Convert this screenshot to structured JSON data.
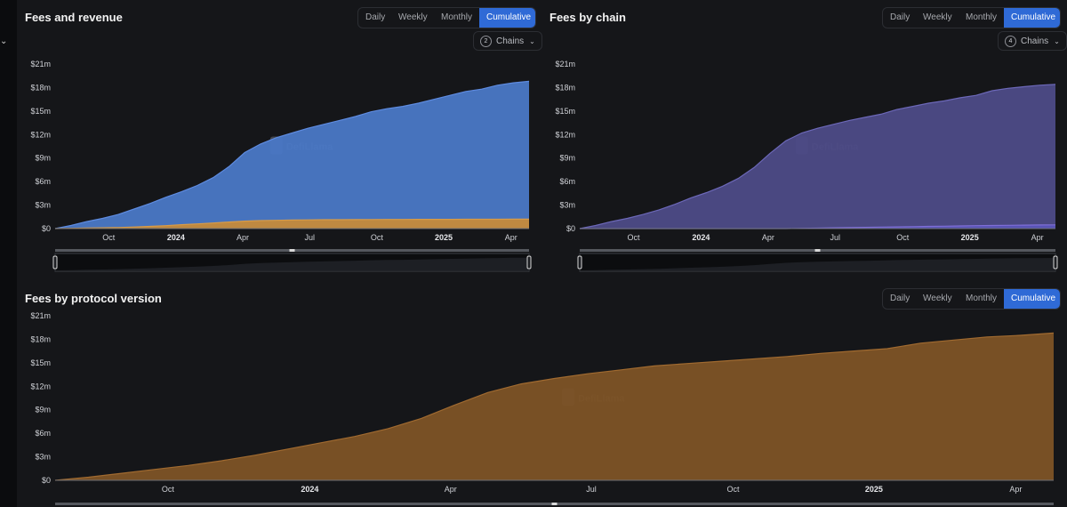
{
  "sidebar": {
    "chevron_icon": "chevron-down-icon"
  },
  "toggle_labels": [
    "Daily",
    "Weekly",
    "Monthly",
    "Cumulative"
  ],
  "active_toggle": "Cumulative",
  "watermark": "DefiLlama",
  "panels": {
    "fees_revenue": {
      "title": "Fees and revenue",
      "chains_count": "2",
      "chains_label": "Chains"
    },
    "fees_chain": {
      "title": "Fees by chain",
      "chains_count": "4",
      "chains_label": "Chains"
    },
    "fees_protocol": {
      "title": "Fees by protocol version"
    }
  },
  "colors": {
    "blue_area": "#4a78c6",
    "orange_area": "#c68a3a",
    "purple_area": "#4d4b87",
    "purple_line": "#7f6fd6",
    "protocol_area": "#7d5326",
    "protocol_line": "#a06a30",
    "active_button": "#2f6ad6"
  },
  "chart_data": [
    {
      "id": "fees_revenue",
      "type": "area",
      "title": "Fees and revenue",
      "x_ticks": [
        "Oct",
        "2024",
        "Apr",
        "Jul",
        "Oct",
        "2025",
        "Apr"
      ],
      "y_ticks": [
        "$0",
        "$3m",
        "$6m",
        "$9m",
        "$12m",
        "$15m",
        "$18m",
        "$21m"
      ],
      "ylim": [
        0,
        21
      ],
      "series": [
        {
          "values": [
            0,
            0.4,
            0.9,
            1.3,
            1.8,
            2.5,
            3.2,
            4.0,
            4.7,
            5.5,
            6.5,
            7.9,
            9.7,
            10.8,
            11.6,
            12.2,
            12.8,
            13.3,
            13.8,
            14.3,
            14.9,
            15.3,
            15.6,
            16.0,
            16.5,
            17.0,
            17.5,
            17.8,
            18.3,
            18.6,
            18.8
          ]
        },
        {
          "values": [
            0,
            0.03,
            0.07,
            0.1,
            0.14,
            0.2,
            0.28,
            0.38,
            0.5,
            0.6,
            0.72,
            0.84,
            0.95,
            1.02,
            1.06,
            1.09,
            1.11,
            1.13,
            1.14,
            1.15,
            1.16,
            1.17,
            1.17,
            1.18,
            1.18,
            1.18,
            1.19,
            1.19,
            1.19,
            1.2,
            1.2
          ]
        }
      ]
    },
    {
      "id": "fees_chain",
      "type": "area",
      "title": "Fees by chain",
      "x_ticks": [
        "Oct",
        "2024",
        "Apr",
        "Jul",
        "Oct",
        "2025",
        "Apr"
      ],
      "y_ticks": [
        "$0",
        "$3m",
        "$6m",
        "$9m",
        "$12m",
        "$15m",
        "$18m",
        "$21m"
      ],
      "ylim": [
        0,
        21
      ],
      "series": [
        {
          "values": [
            0,
            0.4,
            0.9,
            1.3,
            1.8,
            2.4,
            3.1,
            3.9,
            4.6,
            5.4,
            6.4,
            7.8,
            9.6,
            11.2,
            12.2,
            12.8,
            13.3,
            13.8,
            14.2,
            14.6,
            15.2,
            15.6,
            16.0,
            16.3,
            16.7,
            17.0,
            17.6,
            17.9,
            18.1,
            18.3,
            18.4
          ]
        },
        {
          "values": [
            0,
            0,
            0,
            0,
            0,
            0,
            0,
            0,
            0,
            0,
            0,
            0,
            0,
            0,
            0.03,
            0.06,
            0.1,
            0.13,
            0.16,
            0.19,
            0.22,
            0.25,
            0.28,
            0.31,
            0.34,
            0.37,
            0.4,
            0.42,
            0.44,
            0.46,
            0.48
          ]
        }
      ]
    },
    {
      "id": "fees_protocol",
      "type": "area",
      "title": "Fees by protocol version",
      "x_ticks": [
        "Oct",
        "2024",
        "Apr",
        "Jul",
        "Oct",
        "2025",
        "Apr"
      ],
      "y_ticks": [
        "$0",
        "$3m",
        "$6m",
        "$9m",
        "$12m",
        "$15m",
        "$18m",
        "$21m"
      ],
      "ylim": [
        0,
        21
      ],
      "series": [
        {
          "values": [
            0,
            0.4,
            0.9,
            1.4,
            1.9,
            2.5,
            3.2,
            4.0,
            4.8,
            5.6,
            6.6,
            7.9,
            9.6,
            11.2,
            12.3,
            13.0,
            13.6,
            14.1,
            14.6,
            14.9,
            15.2,
            15.5,
            15.8,
            16.2,
            16.5,
            16.8,
            17.5,
            17.9,
            18.3,
            18.5,
            18.8
          ]
        }
      ]
    }
  ]
}
